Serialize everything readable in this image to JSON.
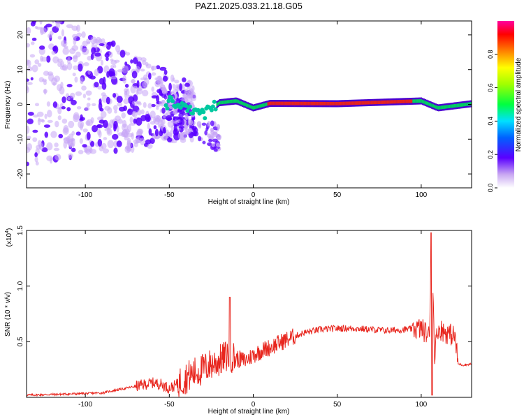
{
  "title": "PAZ1.2025.033.21.18.G05",
  "colors": {
    "spectrum": "#5a00ff",
    "spectrum_light": "#c7a6f5",
    "snr_line": "#e8261e",
    "axis": "#000000"
  },
  "chart_data": [
    {
      "type": "heatmap",
      "xlabel": "Height of straight line (km)",
      "ylabel": "Frequency (Hz)",
      "xlim": [
        -135,
        130
      ],
      "ylim": [
        -24,
        24
      ],
      "xticks": [
        -100,
        -50,
        0,
        50,
        100
      ],
      "yticks": [
        -20,
        -10,
        0,
        10,
        20
      ],
      "colorbar": {
        "label": "Normalized spectral amplitude",
        "ticks": [
          "0.0",
          "0.2",
          "0.4",
          "0.6",
          "0.8"
        ],
        "range": [
          0,
          1
        ]
      },
      "ridge": {
        "description_points_x": [
          -50,
          -40,
          -30,
          -20,
          -10,
          0,
          10,
          50,
          100,
          110,
          130
        ],
        "frequency": [
          1.5,
          -1.5,
          -3.0,
          0.5,
          1.0,
          -1.0,
          0.3,
          0.2,
          1.0,
          -1.0,
          0.2
        ]
      }
    },
    {
      "type": "line",
      "xlabel": "Height of straight line (km)",
      "ylabel": "SNR (10 * v/v)",
      "yscale_label": "(x10^4)",
      "xlim": [
        -135,
        130
      ],
      "ylim": [
        0,
        1.5
      ],
      "xticks": [
        -100,
        -50,
        0,
        50,
        100
      ],
      "yticks": [
        "0.5",
        "1.0",
        "1.5"
      ],
      "series": [
        {
          "x": [
            -135,
            -110,
            -90,
            -80,
            -70,
            -60,
            -55,
            -50,
            -45,
            -40,
            -35,
            -30,
            -25,
            -20,
            -15,
            -10,
            -5,
            0,
            5,
            10,
            20,
            30,
            40,
            50,
            60,
            70,
            80,
            90,
            100,
            105,
            106,
            108,
            110,
            115,
            120,
            122,
            125,
            130
          ],
          "y": [
            0.02,
            0.03,
            0.04,
            0.07,
            0.1,
            0.13,
            0.12,
            0.08,
            0.12,
            0.18,
            0.22,
            0.25,
            0.3,
            0.33,
            0.38,
            0.35,
            0.33,
            0.38,
            0.42,
            0.45,
            0.52,
            0.58,
            0.61,
            0.62,
            0.62,
            0.61,
            0.6,
            0.61,
            0.62,
            0.55,
            1.48,
            0.4,
            0.62,
            0.58,
            0.55,
            0.3,
            0.29,
            0.3
          ]
        }
      ],
      "spikes": [
        {
          "x": -14,
          "y": 0.9
        },
        {
          "x": 106,
          "y": 1.48
        }
      ]
    }
  ]
}
